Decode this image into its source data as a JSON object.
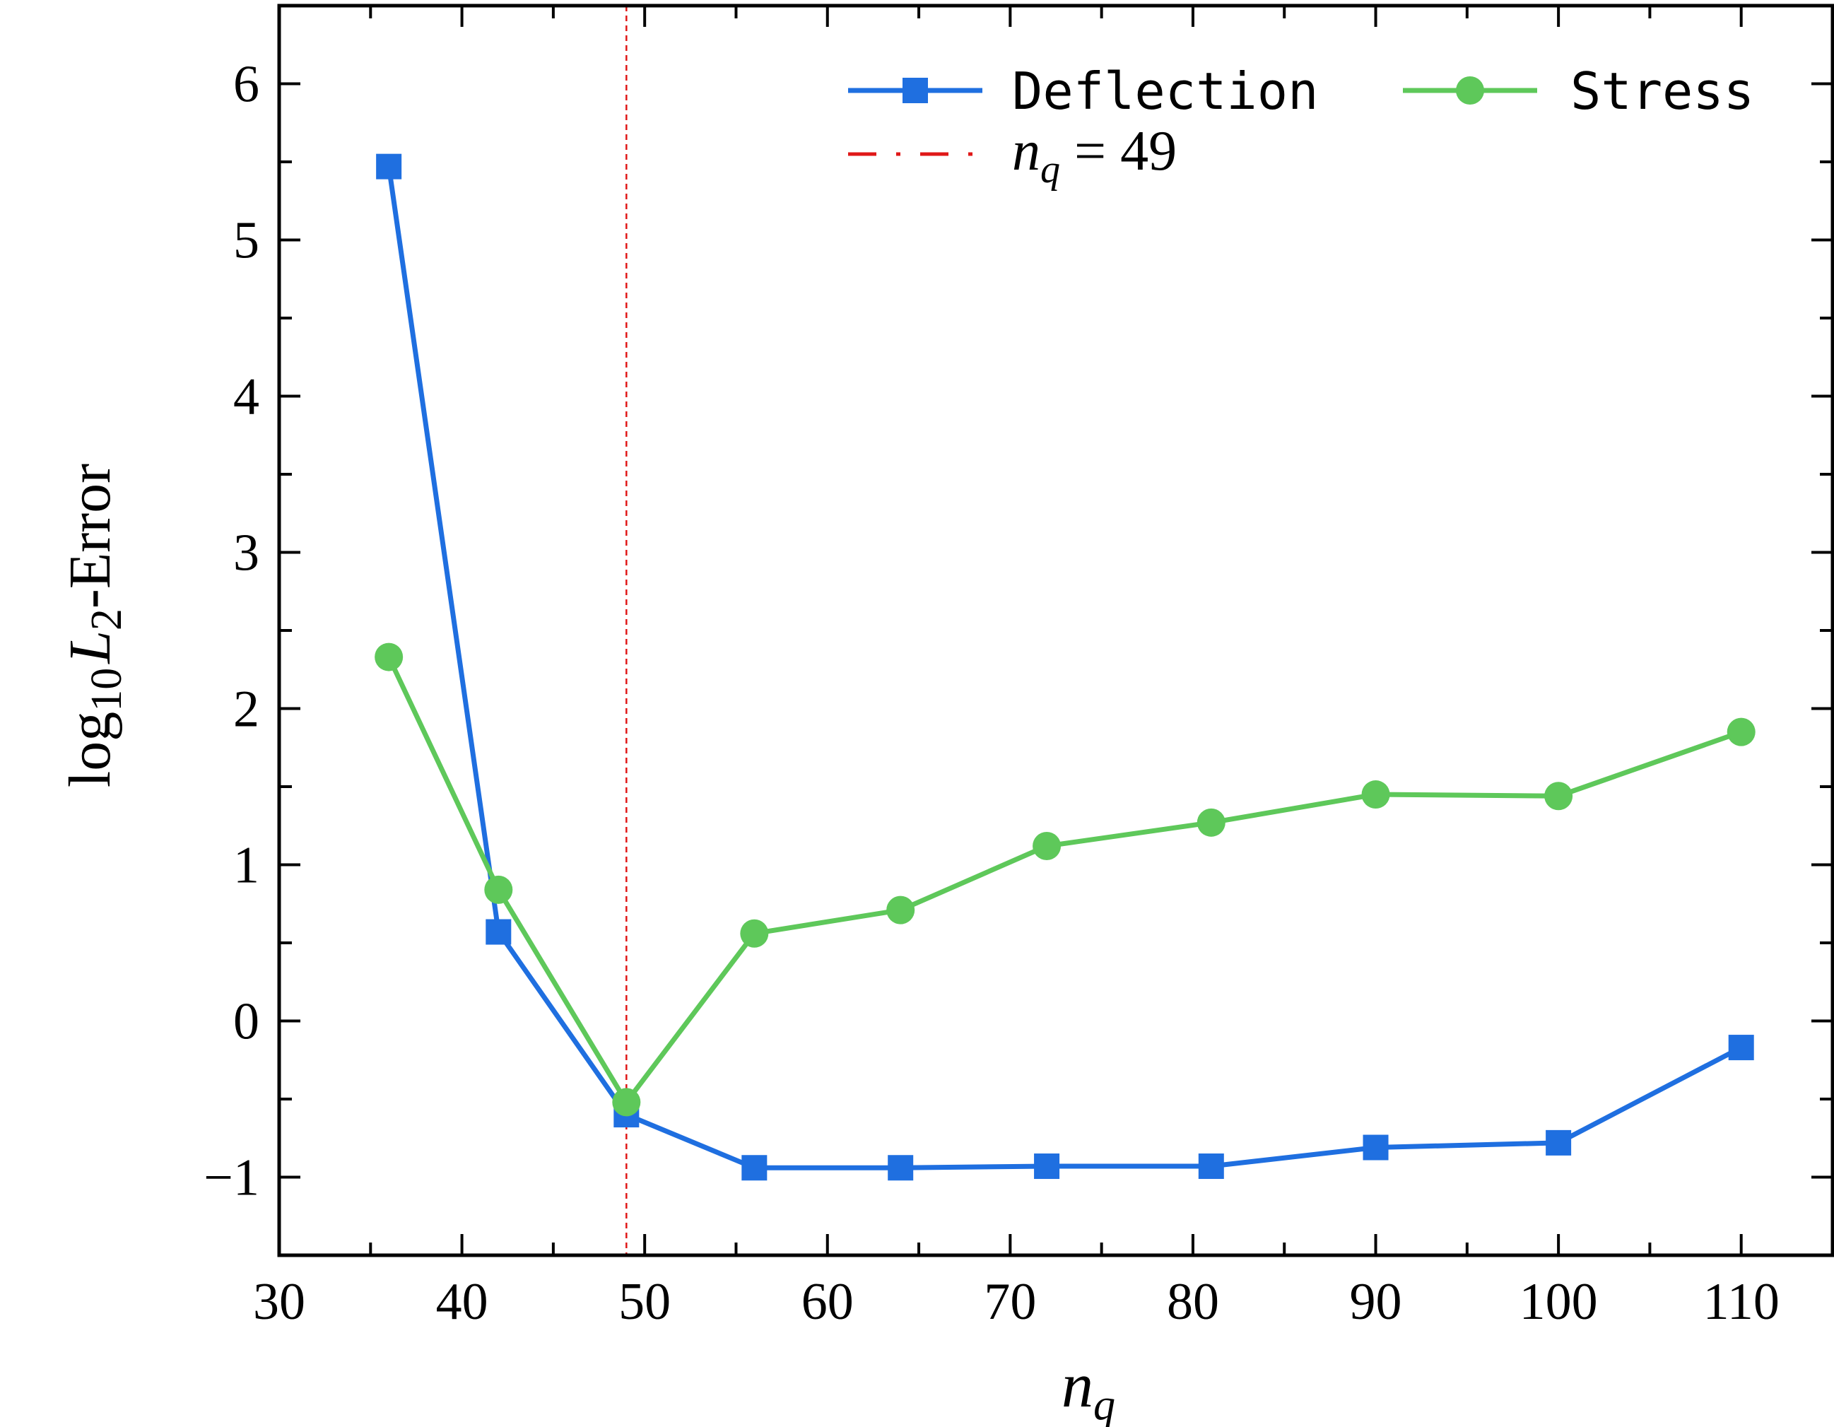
{
  "chart_data": {
    "type": "line",
    "xlabel": "n_q",
    "xlabel_parts": {
      "base": "n",
      "sub": "q"
    },
    "ylabel": "log10 L2-Error",
    "ylabel_parts": {
      "log": "log",
      "log_sub": "10",
      "L": "L",
      "L_sub": "2",
      "rest": "-Error"
    },
    "xlim": [
      30,
      115
    ],
    "ylim": [
      -1.5,
      6.5
    ],
    "x_ticks": [
      30,
      40,
      50,
      60,
      70,
      80,
      90,
      100,
      110
    ],
    "x_tick_labels": [
      "30",
      "40",
      "50",
      "60",
      "70",
      "80",
      "90",
      "100",
      "110"
    ],
    "y_ticks": [
      -1,
      0,
      1,
      2,
      3,
      4,
      5,
      6
    ],
    "y_tick_labels": [
      "−1",
      "0",
      "1",
      "2",
      "3",
      "4",
      "5",
      "6"
    ],
    "grid": false,
    "legend_position": "top-right",
    "series": [
      {
        "name": "Deflection",
        "color": "#1f6fe0",
        "marker": "square",
        "x": [
          36,
          42,
          49,
          56,
          64,
          72,
          81,
          90,
          100,
          110
        ],
        "y": [
          5.47,
          0.57,
          -0.6,
          -0.94,
          -0.94,
          -0.93,
          -0.93,
          -0.81,
          -0.78,
          -0.17
        ]
      },
      {
        "name": "Stress",
        "color": "#5ec85a",
        "marker": "circle",
        "x": [
          36,
          42,
          49,
          56,
          64,
          72,
          81,
          90,
          100,
          110
        ],
        "y": [
          2.33,
          0.84,
          -0.52,
          0.56,
          0.71,
          1.12,
          1.27,
          1.45,
          1.44,
          1.85
        ]
      }
    ],
    "reference_line": {
      "orientation": "vertical",
      "x": 49,
      "color": "#e01818",
      "style": "dashed",
      "label_parts": {
        "base": "n",
        "sub": "q",
        "rest": " = 49"
      }
    }
  }
}
